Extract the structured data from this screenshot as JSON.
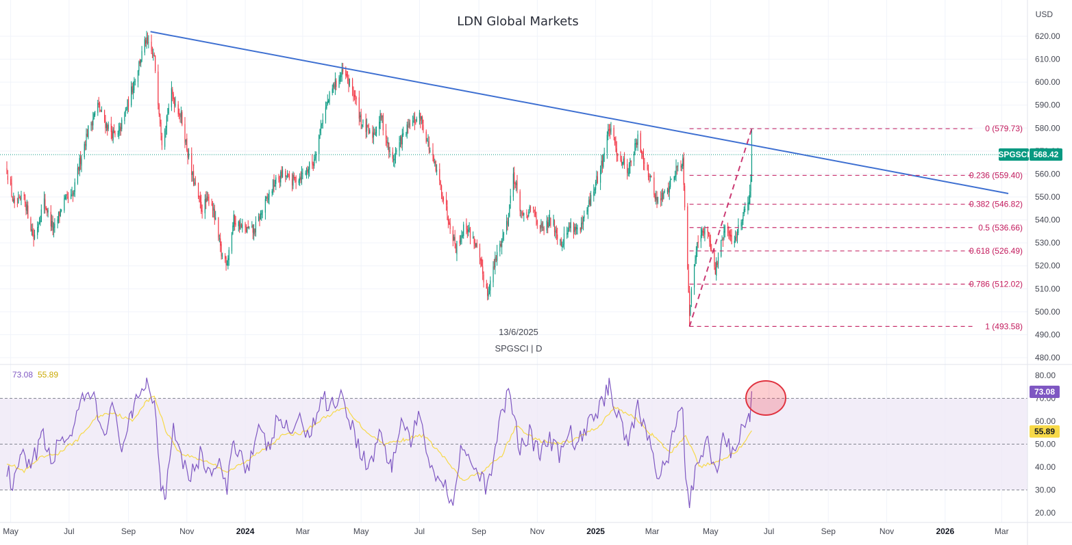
{
  "title": "LDN Global Markets",
  "currency_label": "USD",
  "info": {
    "date": "13/6/2025",
    "symbol_line": "SPGSCI | D"
  },
  "price_tag": {
    "symbol": "SPGSCI",
    "value": "568.42",
    "color": "#089981"
  },
  "rsi_tag": {
    "value": "73.08",
    "color": "#7e57c2"
  },
  "rsi_ma_tag": {
    "value": "55.89",
    "color": "#f7d948"
  },
  "rsi_legend": {
    "rsi": "73.08",
    "ma": "55.89"
  },
  "colors": {
    "up": "#089981",
    "down": "#f23645",
    "trendline": "#3d6fd1",
    "fib": "#c2185b",
    "rsi_line": "#7e57c2",
    "rsi_ma": "#f7d948",
    "rsi_band": "#ede7f6"
  },
  "chart_data": [
    {
      "type": "candlestick",
      "title": "LDN Global Markets",
      "series_name": "SPGSCI",
      "interval": "D",
      "ylim": [
        476,
        628
      ],
      "y_ticks": [
        "620.00",
        "610.00",
        "600.00",
        "590.00",
        "580.00",
        "570.00",
        "560.00",
        "550.00",
        "540.00",
        "530.00",
        "520.00",
        "510.00",
        "500.00",
        "490.00",
        "480.00"
      ],
      "x_ticks": [
        {
          "label": "May",
          "d": "2023-05-01",
          "bold": false
        },
        {
          "label": "Jul",
          "d": "2023-07-01",
          "bold": false
        },
        {
          "label": "Sep",
          "d": "2023-09-01",
          "bold": false
        },
        {
          "label": "Nov",
          "d": "2023-11-01",
          "bold": false
        },
        {
          "label": "2024",
          "d": "2024-01-01",
          "bold": true
        },
        {
          "label": "Mar",
          "d": "2024-03-01",
          "bold": false
        },
        {
          "label": "May",
          "d": "2024-05-01",
          "bold": false
        },
        {
          "label": "Jul",
          "d": "2024-07-01",
          "bold": false
        },
        {
          "label": "Sep",
          "d": "2024-09-01",
          "bold": false
        },
        {
          "label": "Nov",
          "d": "2024-11-01",
          "bold": false
        },
        {
          "label": "2025",
          "d": "2025-01-01",
          "bold": true
        },
        {
          "label": "Mar",
          "d": "2025-03-01",
          "bold": false
        },
        {
          "label": "May",
          "d": "2025-05-01",
          "bold": false
        },
        {
          "label": "Jul",
          "d": "2025-07-01",
          "bold": false
        },
        {
          "label": "Sep",
          "d": "2025-09-01",
          "bold": false
        },
        {
          "label": "Nov",
          "d": "2025-11-01",
          "bold": false
        },
        {
          "label": "2026",
          "d": "2026-01-01",
          "bold": true
        },
        {
          "label": "Mar",
          "d": "2026-03-01",
          "bold": false
        }
      ],
      "price_path": [
        [
          "2023-04-27",
          562
        ],
        [
          "2023-05-05",
          545
        ],
        [
          "2023-05-15",
          550
        ],
        [
          "2023-05-25",
          532
        ],
        [
          "2023-06-05",
          548
        ],
        [
          "2023-06-15",
          535
        ],
        [
          "2023-06-25",
          548
        ],
        [
          "2023-07-05",
          550
        ],
        [
          "2023-07-12",
          565
        ],
        [
          "2023-07-20",
          578
        ],
        [
          "2023-07-31",
          590
        ],
        [
          "2023-08-08",
          582
        ],
        [
          "2023-08-20",
          575
        ],
        [
          "2023-08-31",
          590
        ],
        [
          "2023-09-10",
          605
        ],
        [
          "2023-09-19",
          618
        ],
        [
          "2023-09-28",
          610
        ],
        [
          "2023-10-06",
          575
        ],
        [
          "2023-10-16",
          595
        ],
        [
          "2023-10-26",
          585
        ],
        [
          "2023-11-06",
          560
        ],
        [
          "2023-11-16",
          545
        ],
        [
          "2023-11-26",
          550
        ],
        [
          "2023-12-07",
          525
        ],
        [
          "2023-12-13",
          522
        ],
        [
          "2023-12-20",
          540
        ],
        [
          "2023-12-30",
          536
        ],
        [
          "2024-01-10",
          535
        ],
        [
          "2024-01-20",
          545
        ],
        [
          "2024-01-30",
          555
        ],
        [
          "2024-02-09",
          560
        ],
        [
          "2024-02-19",
          557
        ],
        [
          "2024-03-01",
          560
        ],
        [
          "2024-03-12",
          565
        ],
        [
          "2024-03-22",
          585
        ],
        [
          "2024-04-02",
          598
        ],
        [
          "2024-04-12",
          604
        ],
        [
          "2024-04-22",
          597
        ],
        [
          "2024-05-02",
          582
        ],
        [
          "2024-05-12",
          576
        ],
        [
          "2024-05-22",
          585
        ],
        [
          "2024-06-02",
          565
        ],
        [
          "2024-06-12",
          575
        ],
        [
          "2024-06-22",
          582
        ],
        [
          "2024-07-02",
          585
        ],
        [
          "2024-07-12",
          570
        ],
        [
          "2024-07-22",
          556
        ],
        [
          "2024-08-01",
          540
        ],
        [
          "2024-08-08",
          528
        ],
        [
          "2024-08-18",
          538
        ],
        [
          "2024-08-28",
          530
        ],
        [
          "2024-09-10",
          508
        ],
        [
          "2024-09-20",
          525
        ],
        [
          "2024-10-01",
          540
        ],
        [
          "2024-10-07",
          560
        ],
        [
          "2024-10-17",
          540
        ],
        [
          "2024-10-27",
          545
        ],
        [
          "2024-11-06",
          535
        ],
        [
          "2024-11-16",
          540
        ],
        [
          "2024-11-26",
          530
        ],
        [
          "2024-12-06",
          538
        ],
        [
          "2024-12-16",
          535
        ],
        [
          "2024-12-26",
          548
        ],
        [
          "2025-01-06",
          562
        ],
        [
          "2025-01-15",
          580
        ],
        [
          "2025-01-25",
          568
        ],
        [
          "2025-02-04",
          562
        ],
        [
          "2025-02-14",
          575
        ],
        [
          "2025-02-24",
          562
        ],
        [
          "2025-03-06",
          548
        ],
        [
          "2025-03-16",
          552
        ],
        [
          "2025-03-26",
          562
        ],
        [
          "2025-04-02",
          566
        ],
        [
          "2025-04-07",
          520
        ],
        [
          "2025-04-09",
          500
        ],
        [
          "2025-04-17",
          532
        ],
        [
          "2025-04-28",
          536
        ],
        [
          "2025-05-06",
          518
        ],
        [
          "2025-05-16",
          536
        ],
        [
          "2025-05-25",
          530
        ],
        [
          "2025-06-02",
          540
        ],
        [
          "2025-06-10",
          550
        ],
        [
          "2025-06-12",
          556
        ],
        [
          "2025-06-13",
          568.42
        ]
      ],
      "trendline": {
        "from": [
          "2023-09-24",
          622
        ],
        "to": [
          "2026-03-08",
          551.5
        ],
        "color": "#3d6fd1"
      },
      "fibonacci": {
        "from": [
          "2025-04-09",
          493.58
        ],
        "to": [
          "2025-06-13",
          579.73
        ],
        "line_end": "2026-02-01",
        "levels": [
          {
            "ratio": "0",
            "price": 579.73,
            "label": "0 (579.73)"
          },
          {
            "ratio": "0.236",
            "price": 559.4,
            "label": "0.236 (559.40)"
          },
          {
            "ratio": "0.382",
            "price": 546.82,
            "label": "0.382 (546.82)"
          },
          {
            "ratio": "0.5",
            "price": 536.66,
            "label": "0.5 (536.66)"
          },
          {
            "ratio": "0.618",
            "price": 526.49,
            "label": "0.618 (526.49)"
          },
          {
            "ratio": "0.786",
            "price": 512.02,
            "label": "0.786 (512.02)"
          },
          {
            "ratio": "1",
            "price": 493.58,
            "label": "1 (493.58)"
          }
        ]
      },
      "last_price": 568.42
    },
    {
      "type": "line",
      "title": "RSI",
      "ylim": [
        15,
        85
      ],
      "y_ticks": [
        "80.00",
        "70.00",
        "60.00",
        "50.00",
        "40.00",
        "30.00",
        "20.00"
      ],
      "levels": {
        "upper": 70,
        "middle": 50,
        "lower": 30
      },
      "rsi_path": [
        [
          "2023-04-27",
          40
        ],
        [
          "2023-05-03",
          29
        ],
        [
          "2023-05-12",
          45
        ],
        [
          "2023-05-22",
          38
        ],
        [
          "2023-06-02",
          55
        ],
        [
          "2023-06-12",
          42
        ],
        [
          "2023-06-22",
          52
        ],
        [
          "2023-07-05",
          55
        ],
        [
          "2023-07-15",
          68
        ],
        [
          "2023-07-25",
          72
        ],
        [
          "2023-08-05",
          55
        ],
        [
          "2023-08-15",
          65
        ],
        [
          "2023-08-25",
          50
        ],
        [
          "2023-09-05",
          62
        ],
        [
          "2023-09-15",
          75
        ],
        [
          "2023-09-20",
          78
        ],
        [
          "2023-09-28",
          68
        ],
        [
          "2023-10-05",
          33
        ],
        [
          "2023-10-10",
          29
        ],
        [
          "2023-10-18",
          60
        ],
        [
          "2023-10-26",
          45
        ],
        [
          "2023-11-05",
          36
        ],
        [
          "2023-11-15",
          45
        ],
        [
          "2023-11-25",
          38
        ],
        [
          "2023-12-05",
          40
        ],
        [
          "2023-12-13",
          30
        ],
        [
          "2023-12-20",
          52
        ],
        [
          "2024-01-03",
          40
        ],
        [
          "2024-01-15",
          55
        ],
        [
          "2024-01-25",
          48
        ],
        [
          "2024-02-05",
          62
        ],
        [
          "2024-02-15",
          55
        ],
        [
          "2024-02-25",
          60
        ],
        [
          "2024-03-10",
          55
        ],
        [
          "2024-03-20",
          70
        ],
        [
          "2024-04-02",
          68
        ],
        [
          "2024-04-10",
          72
        ],
        [
          "2024-04-20",
          60
        ],
        [
          "2024-05-02",
          45
        ],
        [
          "2024-05-10",
          40
        ],
        [
          "2024-05-20",
          55
        ],
        [
          "2024-06-02",
          40
        ],
        [
          "2024-06-12",
          60
        ],
        [
          "2024-06-22",
          52
        ],
        [
          "2024-07-02",
          62
        ],
        [
          "2024-07-12",
          42
        ],
        [
          "2024-07-22",
          35
        ],
        [
          "2024-08-05",
          26
        ],
        [
          "2024-08-15",
          52
        ],
        [
          "2024-08-25",
          40
        ],
        [
          "2024-09-10",
          30
        ],
        [
          "2024-09-20",
          55
        ],
        [
          "2024-09-30",
          70
        ],
        [
          "2024-10-04",
          72
        ],
        [
          "2024-10-14",
          48
        ],
        [
          "2024-10-24",
          55
        ],
        [
          "2024-11-04",
          45
        ],
        [
          "2024-11-14",
          52
        ],
        [
          "2024-11-24",
          45
        ],
        [
          "2024-12-04",
          55
        ],
        [
          "2024-12-14",
          50
        ],
        [
          "2024-12-26",
          60
        ],
        [
          "2025-01-08",
          68
        ],
        [
          "2025-01-15",
          76
        ],
        [
          "2025-01-25",
          62
        ],
        [
          "2025-02-04",
          52
        ],
        [
          "2025-02-14",
          65
        ],
        [
          "2025-02-24",
          55
        ],
        [
          "2025-03-06",
          38
        ],
        [
          "2025-03-16",
          42
        ],
        [
          "2025-03-26",
          58
        ],
        [
          "2025-04-02",
          66
        ],
        [
          "2025-04-05",
          35
        ],
        [
          "2025-04-09",
          22
        ],
        [
          "2025-04-17",
          45
        ],
        [
          "2025-04-28",
          50
        ],
        [
          "2025-05-06",
          38
        ],
        [
          "2025-05-16",
          55
        ],
        [
          "2025-05-25",
          45
        ],
        [
          "2025-06-02",
          55
        ],
        [
          "2025-06-08",
          60
        ],
        [
          "2025-06-11",
          62
        ],
        [
          "2025-06-13",
          73.08
        ]
      ],
      "ma_path": [
        [
          "2023-04-27",
          42
        ],
        [
          "2023-05-15",
          38
        ],
        [
          "2023-06-01",
          44
        ],
        [
          "2023-06-20",
          46
        ],
        [
          "2023-07-10",
          52
        ],
        [
          "2023-07-30",
          62
        ],
        [
          "2023-08-15",
          64
        ],
        [
          "2023-09-05",
          60
        ],
        [
          "2023-09-18",
          68
        ],
        [
          "2023-09-28",
          71
        ],
        [
          "2023-10-10",
          56
        ],
        [
          "2023-10-25",
          46
        ],
        [
          "2023-11-10",
          44
        ],
        [
          "2023-11-25",
          42
        ],
        [
          "2023-12-13",
          38
        ],
        [
          "2024-01-01",
          42
        ],
        [
          "2024-01-20",
          48
        ],
        [
          "2024-02-10",
          54
        ],
        [
          "2024-03-01",
          55
        ],
        [
          "2024-03-25",
          62
        ],
        [
          "2024-04-15",
          66
        ],
        [
          "2024-05-05",
          56
        ],
        [
          "2024-05-25",
          50
        ],
        [
          "2024-06-15",
          52
        ],
        [
          "2024-07-05",
          54
        ],
        [
          "2024-07-25",
          45
        ],
        [
          "2024-08-15",
          34
        ],
        [
          "2024-09-05",
          38
        ],
        [
          "2024-09-25",
          45
        ],
        [
          "2024-10-10",
          58
        ],
        [
          "2024-10-30",
          52
        ],
        [
          "2024-11-20",
          50
        ],
        [
          "2024-12-10",
          52
        ],
        [
          "2025-01-05",
          58
        ],
        [
          "2025-01-20",
          66
        ],
        [
          "2025-02-10",
          62
        ],
        [
          "2025-03-01",
          54
        ],
        [
          "2025-03-20",
          46
        ],
        [
          "2025-04-05",
          54
        ],
        [
          "2025-04-20",
          40
        ],
        [
          "2025-05-05",
          42
        ],
        [
          "2025-05-25",
          46
        ],
        [
          "2025-06-05",
          50
        ],
        [
          "2025-06-13",
          55.89
        ]
      ],
      "last_value": 73.08,
      "ma_last_value": 55.89
    }
  ]
}
